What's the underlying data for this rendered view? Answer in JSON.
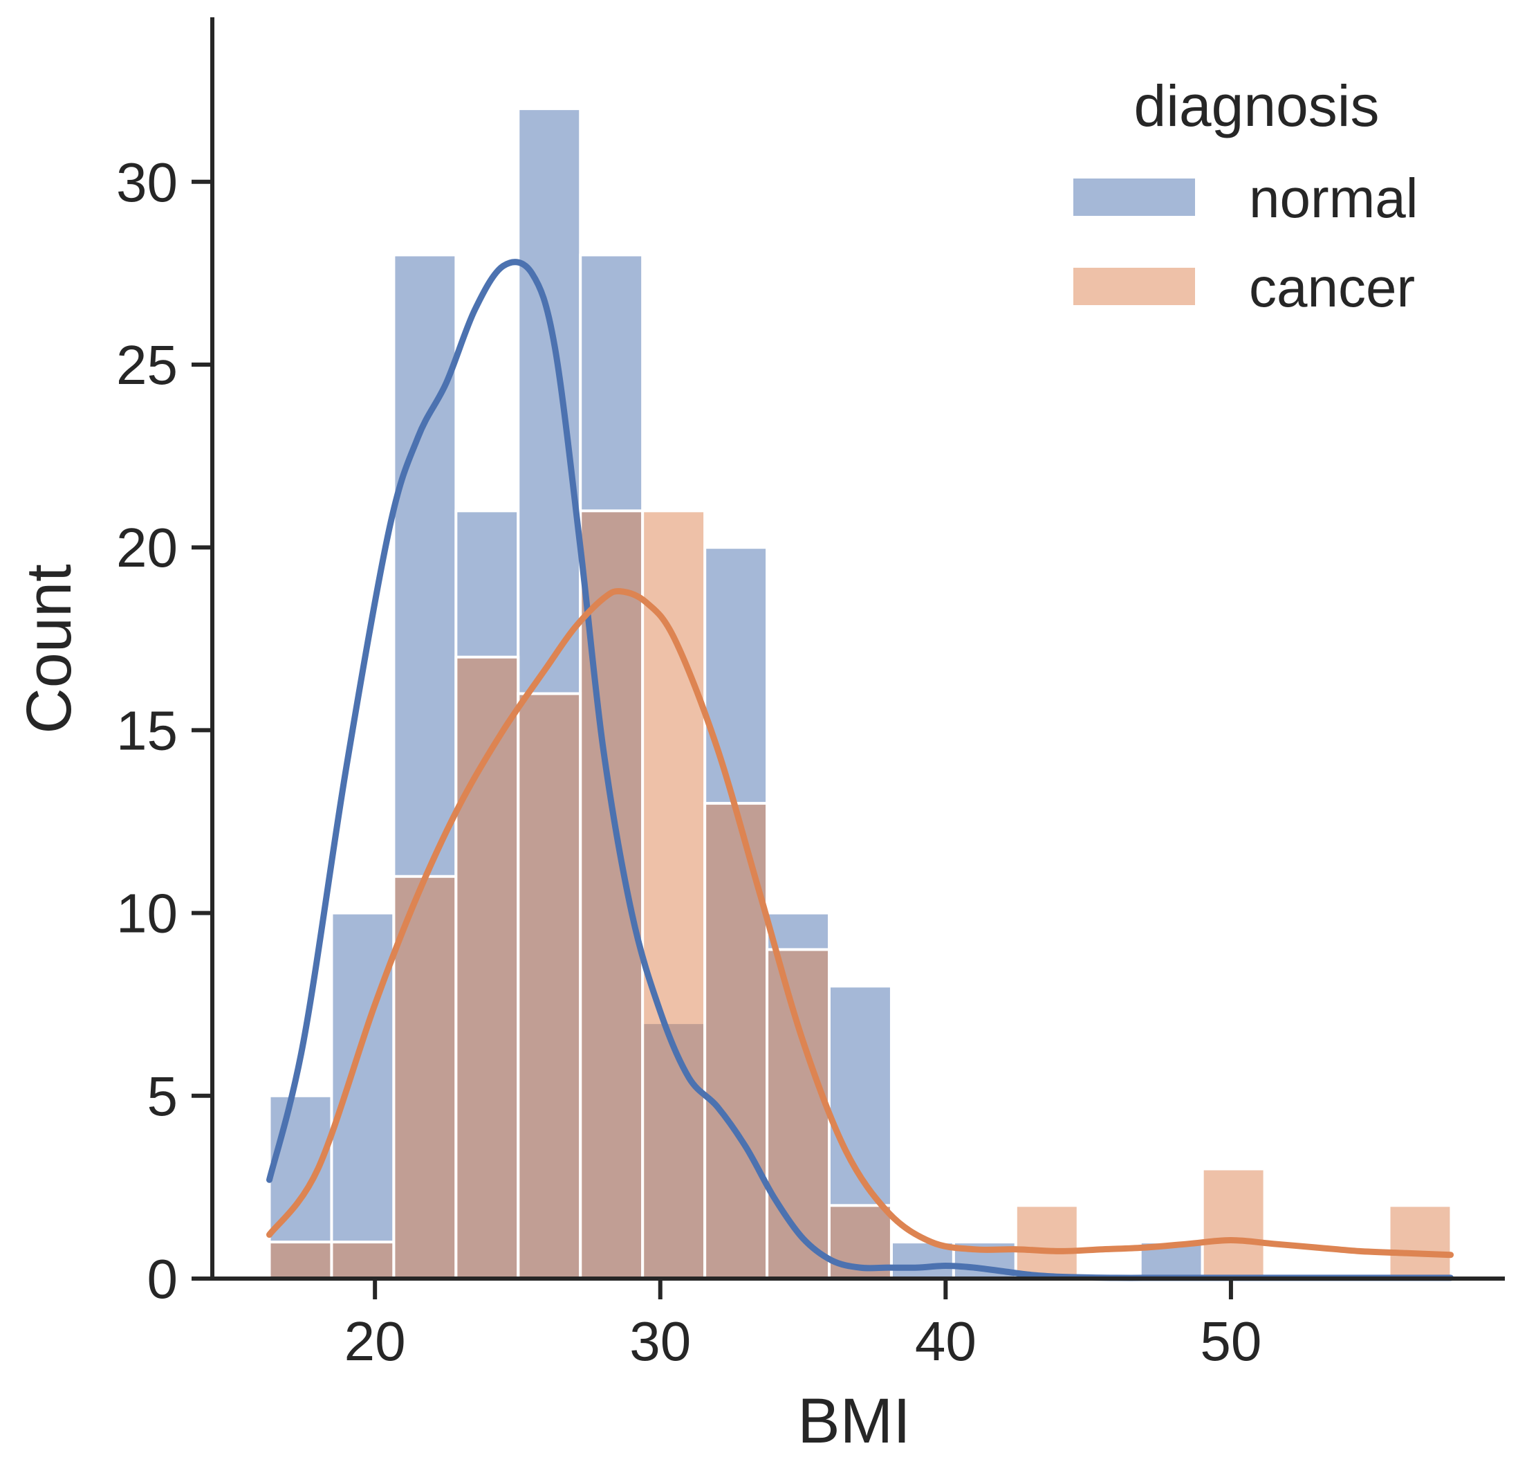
{
  "chart_data": {
    "type": "bar",
    "subtype": "histogram-with-kde",
    "title": "",
    "xlabel": "BMI",
    "ylabel": "Count",
    "xlim": [
      14.3,
      59.6
    ],
    "ylim": [
      0,
      34.5
    ],
    "x_ticks": [
      20,
      30,
      40,
      50
    ],
    "y_ticks": [
      0,
      5,
      10,
      15,
      20,
      25,
      30
    ],
    "grid": false,
    "legend": {
      "title": "diagnosis",
      "position": "top-right"
    },
    "bins": {
      "start": 16.3,
      "width": 2.18,
      "edges": [
        16.3,
        18.48,
        20.66,
        22.84,
        25.02,
        27.2,
        29.38,
        31.56,
        33.74,
        35.92,
        38.1,
        40.28,
        42.46,
        44.64,
        46.82,
        49.0,
        51.18,
        53.36,
        55.54,
        57.72
      ]
    },
    "series": [
      {
        "name": "normal",
        "color": "#4c72b0",
        "values": [
          5,
          10,
          28,
          21,
          32,
          28,
          7,
          20,
          10,
          8,
          1,
          1,
          0,
          0,
          1,
          0,
          0,
          0,
          0
        ],
        "kde": {
          "x": [
            16.3,
            17.5,
            19,
            20.5,
            21.5,
            22.5,
            23.5,
            24.5,
            25.5,
            26.3,
            27.2,
            28,
            29,
            30,
            31,
            32,
            33,
            34,
            35,
            36,
            37,
            38,
            39,
            40,
            41,
            42,
            43,
            44,
            45,
            46,
            47,
            48,
            49,
            50,
            52,
            54,
            56,
            57.7
          ],
          "y": [
            2.7,
            6.5,
            14,
            20.5,
            23,
            24.5,
            26.5,
            27.7,
            27.5,
            25.5,
            20,
            14.5,
            10,
            7.3,
            5.5,
            4.7,
            3.6,
            2.2,
            1.1,
            0.5,
            0.3,
            0.3,
            0.3,
            0.35,
            0.3,
            0.2,
            0.1,
            0.05,
            0.03,
            0.02,
            0.02,
            0.02,
            0.02,
            0.02,
            0.02,
            0.02,
            0.02,
            0.02
          ]
        }
      },
      {
        "name": "cancer",
        "color": "#dd8452",
        "values": [
          1,
          1,
          11,
          17,
          16,
          21,
          21,
          13,
          9,
          2,
          0,
          0,
          2,
          0,
          0,
          3,
          0,
          0,
          2
        ],
        "kde": {
          "x": [
            16.3,
            18,
            20,
            21.5,
            23,
            24.5,
            26,
            27,
            28,
            28.6,
            29.5,
            30.5,
            32,
            33.5,
            35,
            36.5,
            38,
            39.5,
            41,
            42.5,
            44,
            45.5,
            47,
            48.5,
            50,
            51.5,
            53,
            54.5,
            56,
            57.7
          ],
          "y": [
            1.2,
            3,
            7.5,
            10.5,
            13,
            15,
            16.7,
            17.8,
            18.6,
            18.8,
            18.5,
            17.5,
            14.5,
            10.5,
            6.5,
            3.5,
            1.8,
            1.0,
            0.8,
            0.8,
            0.75,
            0.8,
            0.85,
            0.95,
            1.05,
            0.95,
            0.85,
            0.75,
            0.7,
            0.65
          ]
        }
      }
    ]
  }
}
